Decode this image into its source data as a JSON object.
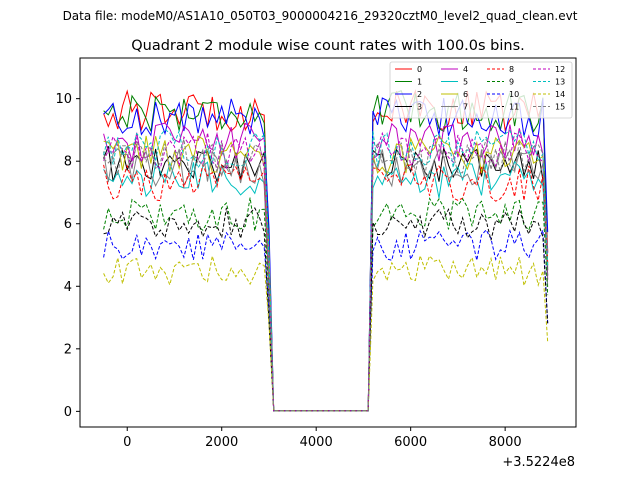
{
  "suptitle": "Data file: modeM0/AS1A10_050T03_9000004216_29320cztM0_level2_quad_clean.evt",
  "chart_data": {
    "type": "line",
    "title": "Quadrant 2 module wise count rates with 100.0s bins.",
    "xlabel": "",
    "ylabel": "",
    "x_offset_label": "+3.5224e8",
    "xlim": [
      -1000,
      9500
    ],
    "ylim": [
      -0.5,
      11.3
    ],
    "xticks": [
      0,
      2000,
      4000,
      6000,
      8000
    ],
    "yticks": [
      0,
      2,
      4,
      6,
      8,
      10
    ],
    "grid": false,
    "legend_position": "top-right",
    "x_segments": [
      {
        "start": -500,
        "end": 3000,
        "step": 100
      },
      {
        "start": 3100,
        "end": 5100,
        "step": 2000
      },
      {
        "start": 5200,
        "end": 8900,
        "step": 100
      }
    ],
    "series": [
      {
        "name": "0",
        "color": "#ff0000",
        "dash": false,
        "level": 9.6
      },
      {
        "name": "1",
        "color": "#008000",
        "dash": false,
        "level": 9.6
      },
      {
        "name": "2",
        "color": "#0000ff",
        "dash": false,
        "level": 9.4
      },
      {
        "name": "3",
        "color": "#000000",
        "dash": false,
        "level": 7.9
      },
      {
        "name": "4",
        "color": "#bf00bf",
        "dash": false,
        "level": 8.6
      },
      {
        "name": "5",
        "color": "#00bfbf",
        "dash": false,
        "level": 7.4
      },
      {
        "name": "6",
        "color": "#bfbf00",
        "dash": false,
        "level": 8.2
      },
      {
        "name": "7",
        "color": "#808080",
        "dash": false,
        "level": 7.8
      },
      {
        "name": "8",
        "color": "#ff0000",
        "dash": true,
        "level": 7.3
      },
      {
        "name": "9",
        "color": "#008000",
        "dash": true,
        "level": 6.3
      },
      {
        "name": "10",
        "color": "#0000ff",
        "dash": true,
        "level": 5.3
      },
      {
        "name": "11",
        "color": "#000000",
        "dash": true,
        "level": 6.0
      },
      {
        "name": "12",
        "color": "#bf00bf",
        "dash": true,
        "level": 8.3
      },
      {
        "name": "13",
        "color": "#00bfbf",
        "dash": true,
        "level": 8.4
      },
      {
        "name": "14",
        "color": "#bfbf00",
        "dash": true,
        "level": 4.5
      },
      {
        "name": "15",
        "color": "#808080",
        "dash": true,
        "level": 8.1
      }
    ]
  }
}
